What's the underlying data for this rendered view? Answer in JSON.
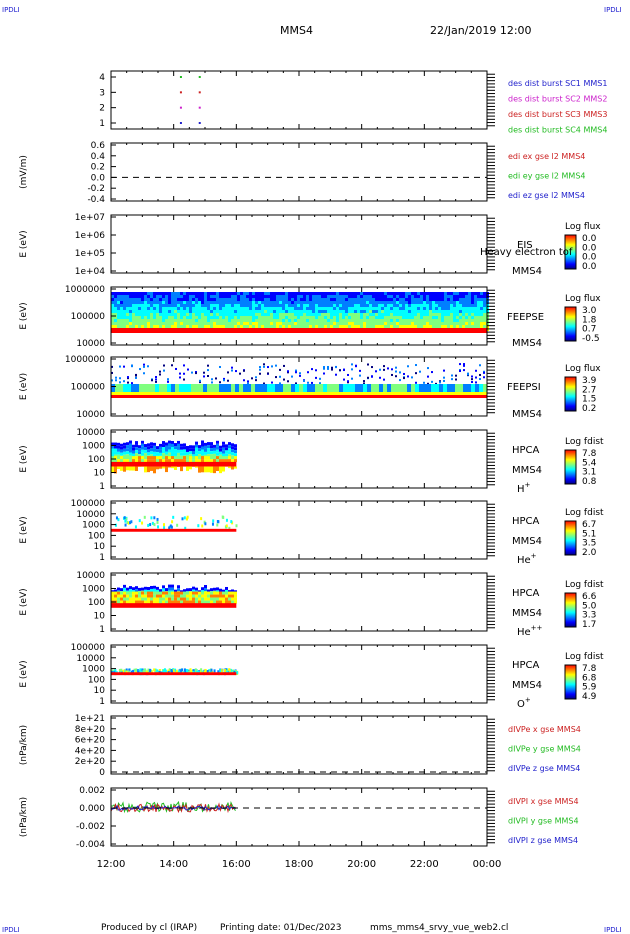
{
  "header": {
    "corner_tl": "IPDLI",
    "corner_tr": "IPDLI",
    "title": "MMS4",
    "datetime": "22/Jan/2019 12:00"
  },
  "footer": {
    "corner_bl": "IPDLI",
    "corner_br": "IPDLI",
    "credits": "Produced by cl (IRAP)",
    "printing_date": "Printing date: 01/Dec/2023",
    "filename": "mms_mms4_srvy_vue_web2.cl"
  },
  "colors": {
    "spectral": [
      "#00007f",
      "#0000ff",
      "#007fff",
      "#00ffff",
      "#7fff7f",
      "#ffff00",
      "#ff7f00",
      "#ff0000",
      "#7f0000"
    ]
  },
  "chart_data": [
    {
      "id": "des_burst",
      "type": "scatter",
      "ylabel": "",
      "y_ticks": [
        "1",
        "2",
        "3",
        "4"
      ],
      "legend": [
        {
          "text": "des dist burst SC1 MMS1",
          "color": "#2222cc"
        },
        {
          "text": "des dist burst SC2 MMS2",
          "color": "#cc22cc"
        },
        {
          "text": "des dist burst SC3 MMS3",
          "color": "#cc2222"
        },
        {
          "text": "des dist burst SC4 MMS4",
          "color": "#22bb22"
        }
      ],
      "points": [
        {
          "x": 14.2,
          "y": 4,
          "color": "#22bb22"
        },
        {
          "x": 14.8,
          "y": 4,
          "color": "#22bb22"
        },
        {
          "x": 14.2,
          "y": 3,
          "color": "#cc2222"
        },
        {
          "x": 14.8,
          "y": 3,
          "color": "#cc2222"
        },
        {
          "x": 14.2,
          "y": 2,
          "color": "#cc22cc"
        },
        {
          "x": 14.8,
          "y": 2,
          "color": "#cc22cc"
        },
        {
          "x": 14.2,
          "y": 1,
          "color": "#2222cc"
        },
        {
          "x": 14.8,
          "y": 1,
          "color": "#2222cc"
        }
      ]
    },
    {
      "id": "edi",
      "type": "line",
      "ylabel": "(mV/m)",
      "y_ticks": [
        "0.6",
        "0.4",
        "0.2",
        "0.0",
        "-0.2",
        "-0.4"
      ],
      "ylim": [
        -0.5,
        0.65
      ],
      "dashed_zero": true,
      "legend": [
        {
          "text": "edi ex gse l2 MMS4",
          "color": "#cc2222"
        },
        {
          "text": "edi ey gse l2 MMS4",
          "color": "#22bb22"
        },
        {
          "text": "edi ez gse l2 MMS4",
          "color": "#2222cc"
        }
      ]
    },
    {
      "id": "eis",
      "type": "heatmap",
      "ylabel": "E (eV)",
      "y_ticks": [
        "1e+07",
        "1e+06",
        "1e+05",
        "1e+04"
      ],
      "instrument": "EIS",
      "overlay_label": "Heavy electron tof",
      "spacecraft": "MMS4",
      "cbar_title": "Log flux",
      "cbar_ticks": [
        "0.0",
        "0.0",
        "0.0",
        "0.0"
      ]
    },
    {
      "id": "feepse",
      "type": "heatmap",
      "ylabel": "E (eV)",
      "y_ticks": [
        "1000000",
        "100000",
        "10000"
      ],
      "instrument": "FEEPSE",
      "spacecraft": "MMS4",
      "cbar_title": "Log flux",
      "cbar_ticks": [
        "3.0",
        "1.8",
        "0.7",
        "-0.5"
      ]
    },
    {
      "id": "feepsi",
      "type": "heatmap",
      "ylabel": "E (eV)",
      "y_ticks": [
        "1000000",
        "100000",
        "10000"
      ],
      "instrument": "FEEPSI",
      "spacecraft": "MMS4",
      "cbar_title": "Log flux",
      "cbar_ticks": [
        "3.9",
        "2.7",
        "1.5",
        "0.2"
      ]
    },
    {
      "id": "hpca_h",
      "type": "heatmap",
      "ylabel": "E (eV)",
      "y_ticks": [
        "10000",
        "1000",
        "100",
        "10",
        "1"
      ],
      "instrument": "HPCA",
      "spacecraft": "MMS4",
      "species": "H",
      "species_sup": "+",
      "cbar_title": "Log fdist",
      "cbar_ticks": [
        "7.8",
        "5.4",
        "3.1",
        "0.8"
      ]
    },
    {
      "id": "hpca_he",
      "type": "heatmap",
      "ylabel": "E (eV)",
      "y_ticks": [
        "100000",
        "10000",
        "1000",
        "100",
        "10",
        "1"
      ],
      "instrument": "HPCA",
      "spacecraft": "MMS4",
      "species": "He",
      "species_sup": "+",
      "cbar_title": "Log fdist",
      "cbar_ticks": [
        "6.7",
        "5.1",
        "3.5",
        "2.0"
      ]
    },
    {
      "id": "hpca_he2",
      "type": "heatmap",
      "ylabel": "E (eV)",
      "y_ticks": [
        "10000",
        "1000",
        "100",
        "10",
        "1"
      ],
      "instrument": "HPCA",
      "spacecraft": "MMS4",
      "species": "He",
      "species_sup": "++",
      "cbar_title": "Log fdist",
      "cbar_ticks": [
        "6.6",
        "5.0",
        "3.3",
        "1.7"
      ]
    },
    {
      "id": "hpca_o",
      "type": "heatmap",
      "ylabel": "E (eV)",
      "y_ticks": [
        "100000",
        "10000",
        "1000",
        "100",
        "10",
        "1"
      ],
      "instrument": "HPCA",
      "spacecraft": "MMS4",
      "species": "O",
      "species_sup": "+",
      "cbar_title": "Log fdist",
      "cbar_ticks": [
        "7.8",
        "6.8",
        "5.9",
        "4.9"
      ]
    },
    {
      "id": "divpe",
      "type": "line",
      "ylabel": "(nPa/km)",
      "y_ticks": [
        "1e+21",
        "8e+20",
        "6e+20",
        "4e+20",
        "2e+20",
        "0"
      ],
      "dashed_zero": true,
      "legend": [
        {
          "text": "dIVPe x gse MMS4",
          "color": "#cc2222"
        },
        {
          "text": "dIVPe y gse MMS4",
          "color": "#22bb22"
        },
        {
          "text": "dIVPe z gse MMS4",
          "color": "#2222cc"
        }
      ]
    },
    {
      "id": "divpi",
      "type": "line",
      "ylabel": "(nPa/km)",
      "y_ticks": [
        "0.002",
        "0.000",
        "-0.002",
        "-0.004"
      ],
      "ylim": [
        -0.0048,
        0.0028
      ],
      "dashed_zero": true,
      "legend": [
        {
          "text": "dIVPI x gse MMS4",
          "color": "#cc2222"
        },
        {
          "text": "dIVPI y gse MMS4",
          "color": "#22bb22"
        },
        {
          "text": "dIVPI z gse MMS4",
          "color": "#2222cc"
        }
      ]
    }
  ],
  "x_axis": {
    "ticks": [
      "12:00",
      "14:00",
      "16:00",
      "18:00",
      "20:00",
      "22:00",
      "00:00"
    ],
    "xlim": [
      12,
      24
    ],
    "data_end": 16
  }
}
